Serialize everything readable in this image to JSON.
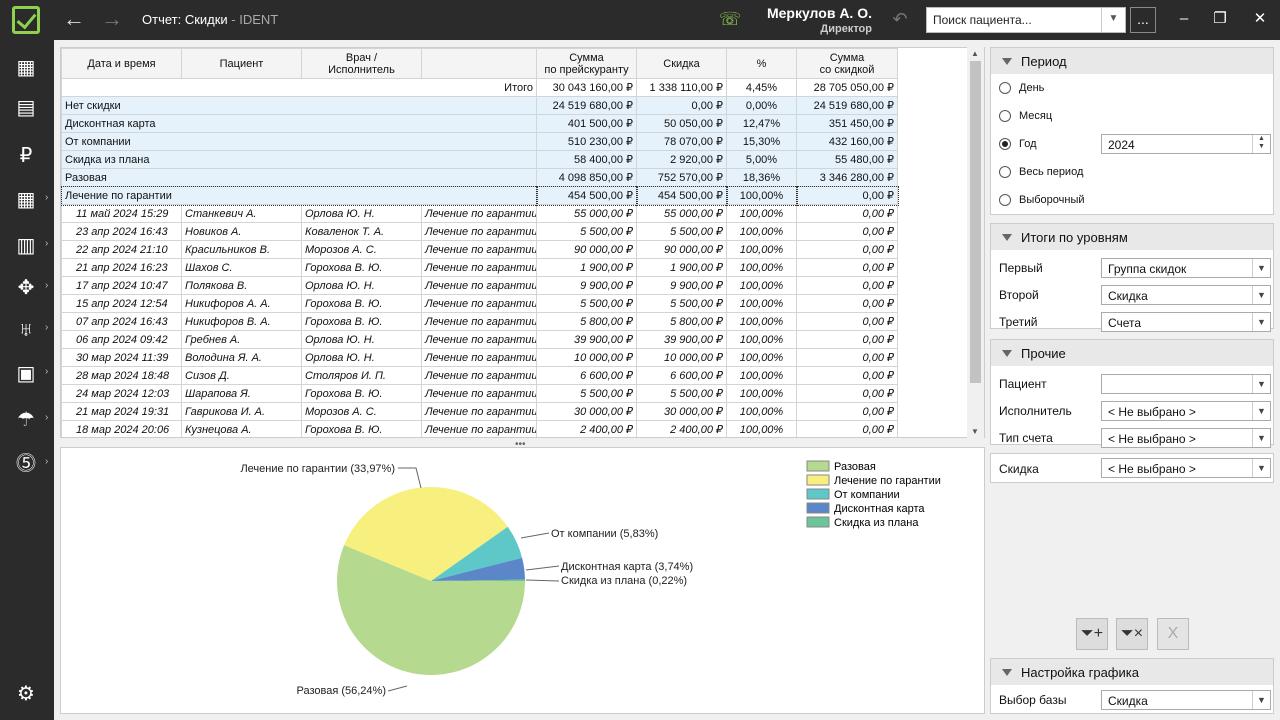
{
  "window": {
    "title": "Отчет: Скидки",
    "app": " - IDENT",
    "user": "Меркулов А. О.",
    "role": "Директор",
    "search_placeholder": "Поиск пациента...",
    "more": "...",
    "min": "–",
    "max": "❐",
    "close": "✕"
  },
  "icons": {
    "back": "←",
    "forward": "→",
    "phone": "☏",
    "history": "↶"
  },
  "sidebar": [
    {
      "name": "schedule-icon",
      "glyph": "▦"
    },
    {
      "name": "visits-icon",
      "glyph": "▤"
    },
    {
      "name": "ruble-icon",
      "glyph": "₽"
    },
    {
      "name": "calendar-icon",
      "glyph": "▦"
    },
    {
      "name": "reports-icon",
      "glyph": "▥"
    },
    {
      "name": "staff-icon",
      "glyph": "✥"
    },
    {
      "name": "tooth-icon",
      "glyph": "♅"
    },
    {
      "name": "docs-icon",
      "glyph": "▣"
    },
    {
      "name": "umbrella-icon",
      "glyph": "☂"
    },
    {
      "name": "money-icon",
      "glyph": "⓹"
    }
  ],
  "settings_glyph": "⚙",
  "table": {
    "headers": [
      "Дата и время",
      "Пациент",
      "Врач /\nИсполнитель",
      "",
      "Сумма\nпо прейскуранту",
      "Скидка",
      "%",
      "Сумма\nсо скидкой"
    ],
    "total": {
      "label": "Итого",
      "sum": "30 043 160,00 ₽",
      "disc": "1 338 110,00 ₽",
      "pct": "4,45%",
      "net": "28 705 050,00 ₽"
    },
    "groups": [
      {
        "label": "Нет скидки",
        "sum": "24 519 680,00 ₽",
        "disc": "0,00 ₽",
        "pct": "0,00%",
        "net": "24 519 680,00 ₽"
      },
      {
        "label": "Дисконтная карта",
        "sum": "401 500,00 ₽",
        "disc": "50 050,00 ₽",
        "pct": "12,47%",
        "net": "351 450,00 ₽"
      },
      {
        "label": "От компании",
        "sum": "510 230,00 ₽",
        "disc": "78 070,00 ₽",
        "pct": "15,30%",
        "net": "432 160,00 ₽"
      },
      {
        "label": "Скидка из плана",
        "sum": "58 400,00 ₽",
        "disc": "2 920,00 ₽",
        "pct": "5,00%",
        "net": "55 480,00 ₽"
      },
      {
        "label": "Разовая",
        "sum": "4 098 850,00 ₽",
        "disc": "752 570,00 ₽",
        "pct": "18,36%",
        "net": "3 346 280,00 ₽"
      },
      {
        "label": "Лечение по гарантии",
        "sum": "454 500,00 ₽",
        "disc": "454 500,00 ₽",
        "pct": "100,00%",
        "net": "0,00 ₽"
      }
    ],
    "rows": [
      [
        "11 май 2024 15:29",
        "Станкевич А.",
        "Орлова Ю. Н.",
        "Лечение по гарантии",
        "55 000,00 ₽",
        "55 000,00 ₽",
        "100,00%",
        "0,00 ₽"
      ],
      [
        "23 апр 2024 16:43",
        "Новиков А.",
        "Коваленок Т. А.",
        "Лечение по гарантии",
        "5 500,00 ₽",
        "5 500,00 ₽",
        "100,00%",
        "0,00 ₽"
      ],
      [
        "22 апр 2024 21:10",
        "Красильников В.",
        "Морозов А. С.",
        "Лечение по гарантии",
        "90 000,00 ₽",
        "90 000,00 ₽",
        "100,00%",
        "0,00 ₽"
      ],
      [
        "21 апр 2024 16:23",
        "Шахов С.",
        "Горохова В. Ю.",
        "Лечение по гарантии",
        "1 900,00 ₽",
        "1 900,00 ₽",
        "100,00%",
        "0,00 ₽"
      ],
      [
        "17 апр 2024 10:47",
        "Полякова В.",
        "Орлова Ю. Н.",
        "Лечение по гарантии",
        "9 900,00 ₽",
        "9 900,00 ₽",
        "100,00%",
        "0,00 ₽"
      ],
      [
        "15 апр 2024 12:54",
        "Никифоров А. А.",
        "Горохова В. Ю.",
        "Лечение по гарантии",
        "5 500,00 ₽",
        "5 500,00 ₽",
        "100,00%",
        "0,00 ₽"
      ],
      [
        "07 апр 2024 16:43",
        "Никифоров В. А.",
        "Горохова В. Ю.",
        "Лечение по гарантии",
        "5 800,00 ₽",
        "5 800,00 ₽",
        "100,00%",
        "0,00 ₽"
      ],
      [
        "06 апр 2024 09:42",
        "Гребнев А.",
        "Орлова Ю. Н.",
        "Лечение по гарантии",
        "39 900,00 ₽",
        "39 900,00 ₽",
        "100,00%",
        "0,00 ₽"
      ],
      [
        "30 мар 2024 11:39",
        "Володина Я. А.",
        "Орлова Ю. Н.",
        "Лечение по гарантии",
        "10 000,00 ₽",
        "10 000,00 ₽",
        "100,00%",
        "0,00 ₽"
      ],
      [
        "28 мар 2024 18:48",
        "Сизов Д.",
        "Столяров И. П.",
        "Лечение по гарантии",
        "6 600,00 ₽",
        "6 600,00 ₽",
        "100,00%",
        "0,00 ₽"
      ],
      [
        "24 мар 2024 12:03",
        "Шарапова Я.",
        "Горохова В. Ю.",
        "Лечение по гарантии",
        "5 500,00 ₽",
        "5 500,00 ₽",
        "100,00%",
        "0,00 ₽"
      ],
      [
        "21 мар 2024 19:31",
        "Гаврикова И. А.",
        "Морозов А. С.",
        "Лечение по гарантии",
        "30 000,00 ₽",
        "30 000,00 ₽",
        "100,00%",
        "0,00 ₽"
      ],
      [
        "18 мар 2024 20:06",
        "Кузнецова А.",
        "Горохова В. Ю.",
        "Лечение по гарантии",
        "2 400,00 ₽",
        "2 400,00 ₽",
        "100,00%",
        "0,00 ₽"
      ]
    ]
  },
  "chart_data": {
    "type": "pie",
    "title": "",
    "categories": [
      "Разовая",
      "Лечение по гарантии",
      "От компании",
      "Дисконтная карта",
      "Скидка из плана"
    ],
    "values": [
      56.24,
      33.97,
      5.83,
      3.74,
      0.22
    ],
    "labels": [
      "Разовая (56,24%)",
      "Лечение по гарантии (33,97%)",
      "От компании (5,83%)",
      "Дисконтная карта (3,74%)",
      "Скидка из плана (0,22%)"
    ],
    "colors": [
      "#b5d98f",
      "#f7f07e",
      "#5ec8c8",
      "#5b86c8",
      "#6cc59a"
    ],
    "legend": "top-right"
  },
  "split_handle": "•••",
  "right": {
    "period": {
      "title": "Период",
      "options": [
        "День",
        "Месяц",
        "Год",
        "Весь период",
        "Выборочный"
      ],
      "selected": "Год",
      "year": "2024"
    },
    "levels": {
      "title": "Итоги по уровням",
      "rows": [
        {
          "label": "Первый",
          "value": "Группа скидок"
        },
        {
          "label": "Второй",
          "value": "Скидка"
        },
        {
          "label": "Третий",
          "value": "Счета"
        }
      ]
    },
    "other": {
      "title": "Прочие",
      "rows": [
        {
          "label": "Пациент",
          "value": ""
        },
        {
          "label": "Исполнитель",
          "value": "< Не выбрано >"
        },
        {
          "label": "Тип счета",
          "value": "< Не выбрано >"
        }
      ]
    },
    "discount": {
      "label": "Скидка",
      "value": "< Не выбрано >"
    },
    "filter_buttons": [
      "⏷+",
      "⏷×",
      "X"
    ],
    "chart_settings": {
      "title": "Настройка графика",
      "label": "Выбор базы",
      "value": "Скидка"
    }
  }
}
